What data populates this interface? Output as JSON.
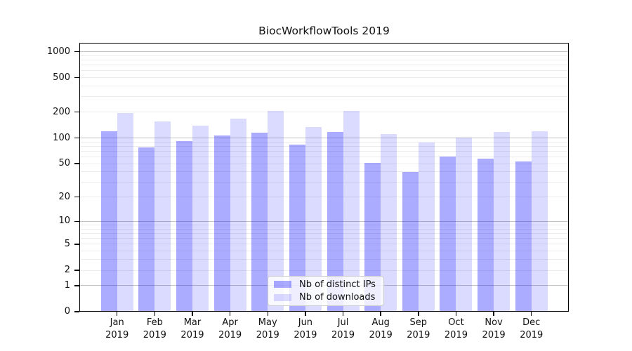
{
  "figure": {
    "title": "BiocWorkflowTools 2019"
  },
  "chart_data": {
    "type": "bar",
    "title": "BiocWorkflowTools 2019",
    "categories": [
      "Jan 2019",
      "Feb 2019",
      "Mar 2019",
      "Apr 2019",
      "May 2019",
      "Jun 2019",
      "Jul 2019",
      "Aug 2019",
      "Sep 2019",
      "Oct 2019",
      "Nov 2019",
      "Dec 2019"
    ],
    "series": [
      {
        "name": "Nb of distinct IPs",
        "color": "rgba(0,0,255,0.33)",
        "swatch_hex": "#aaaaf4",
        "values": [
          119,
          78,
          92,
          107,
          115,
          83,
          117,
          51,
          40,
          61,
          57,
          53
        ]
      },
      {
        "name": "Nb of downloads",
        "color": "rgba(0,0,255,0.14)",
        "swatch_hex": "#dcdcf8",
        "values": [
          195,
          156,
          140,
          168,
          206,
          134,
          206,
          111,
          88,
          101,
          118,
          120
        ]
      }
    ],
    "xlabel": "",
    "ylabel": "",
    "yscale": "log1p",
    "ylim": [
      0,
      1240
    ],
    "y_ticks": [
      0,
      1,
      2,
      5,
      10,
      20,
      50,
      100,
      200,
      500,
      1000
    ],
    "grid": true,
    "gridline_major_values": [
      1,
      10,
      100,
      1000
    ],
    "gridline_minor_values": [
      2,
      3,
      4,
      5,
      6,
      7,
      8,
      9,
      20,
      30,
      40,
      50,
      60,
      70,
      80,
      90,
      200,
      300,
      400,
      500,
      600,
      700,
      800,
      900
    ],
    "gridline_major_color": "#c3c3c3",
    "gridline_minor_color": "#ececec",
    "legend_position": "lower center"
  }
}
